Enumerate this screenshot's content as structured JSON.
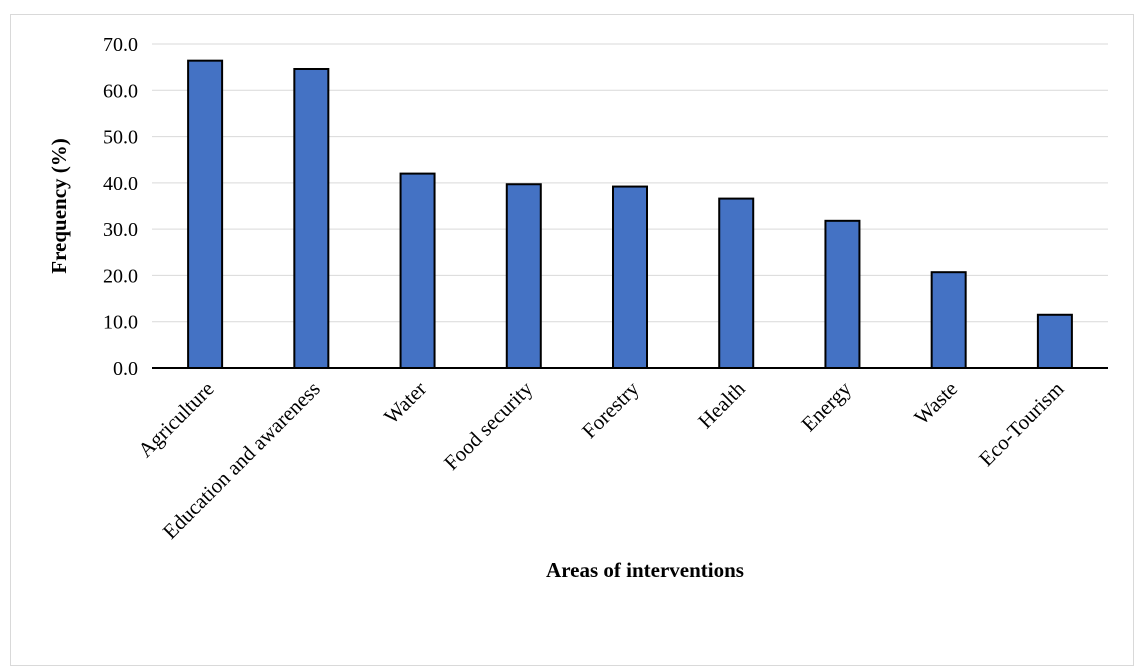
{
  "chart_data": {
    "type": "bar",
    "title": "",
    "xlabel": "Areas of interventions",
    "ylabel": "Frequency (%)",
    "categories": [
      "Agriculture",
      "Education and awareness",
      "Water",
      "Food security",
      "Forestry",
      "Health",
      "Energy",
      "Waste",
      "Eco-Tourism"
    ],
    "values": [
      66.4,
      64.6,
      42.0,
      39.7,
      39.2,
      36.6,
      31.8,
      20.7,
      11.5
    ],
    "yticks": [
      "0.0",
      "10.0",
      "20.0",
      "30.0",
      "40.0",
      "50.0",
      "60.0",
      "70.0"
    ],
    "ylim": [
      0,
      70
    ],
    "grid": true,
    "legend": "none",
    "colors": {
      "bar_fill": "#4472C4",
      "bar_stroke": "#000000",
      "grid": "#d9d9d9",
      "axis": "#000000"
    }
  }
}
